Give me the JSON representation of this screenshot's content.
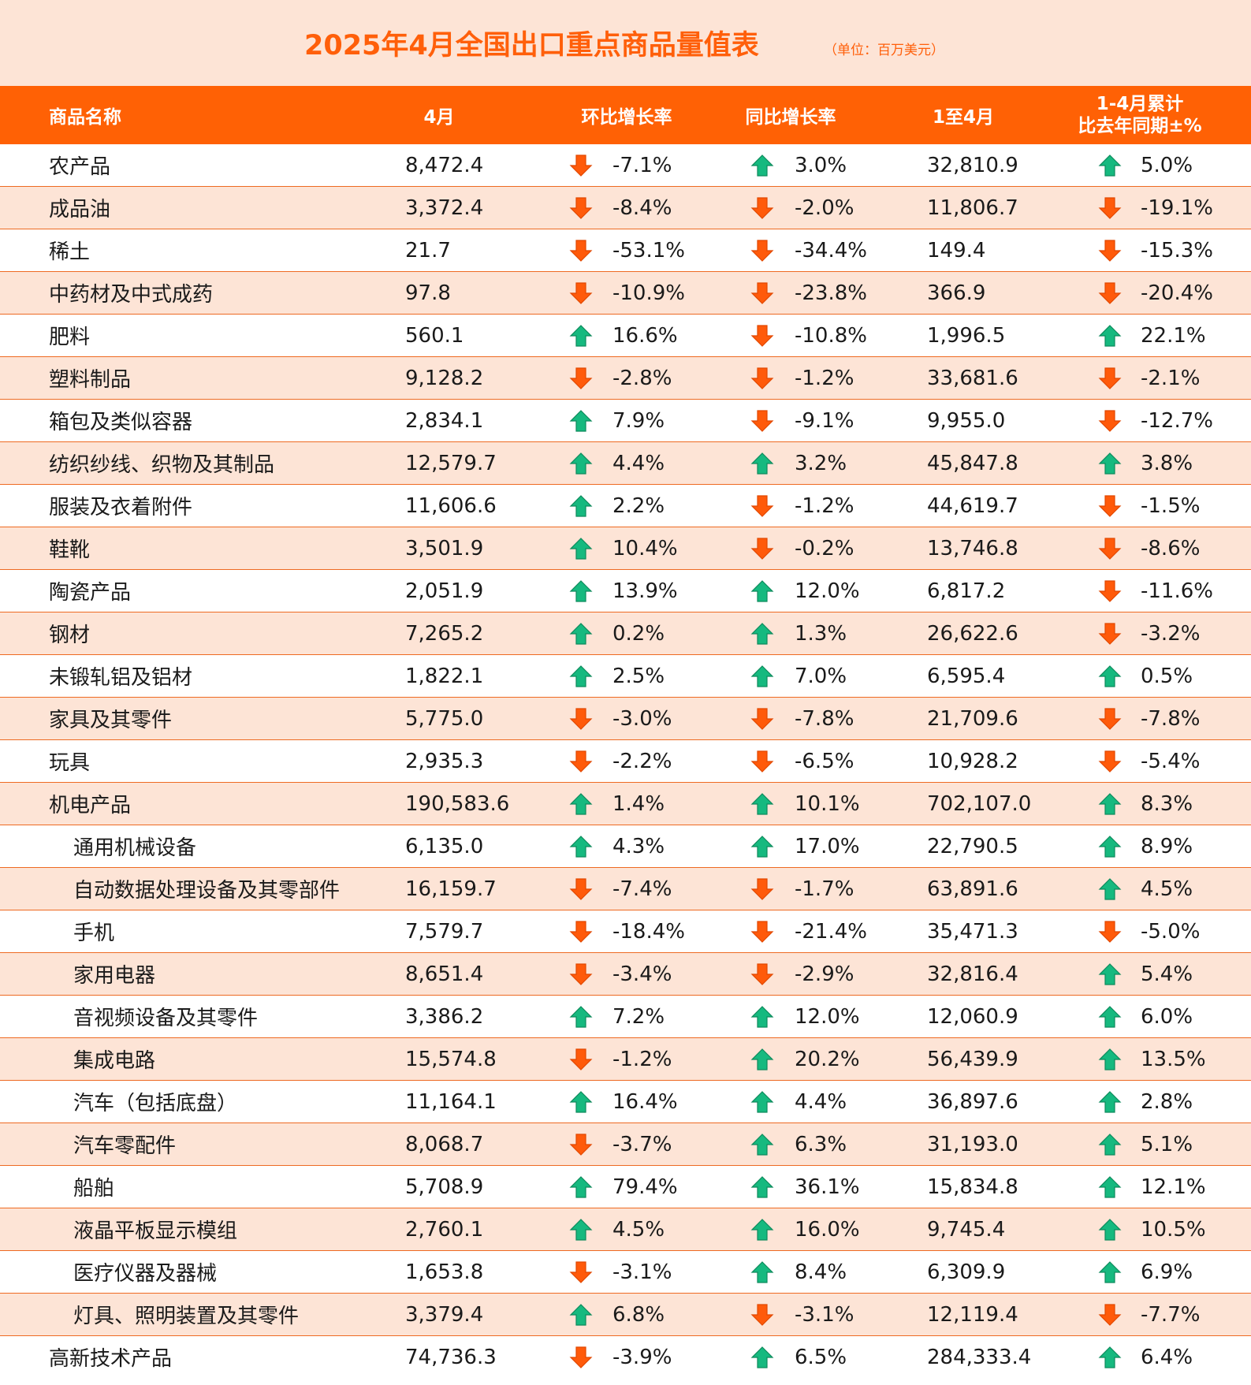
{
  "title": "2025年4月全国出口重点商品量值表",
  "unit": "（单位：百万美元）",
  "colors": {
    "accent": "#FF6105",
    "background": "#FDE4D6",
    "up": "#16B97F",
    "down": "#FF5A0A"
  },
  "headers": {
    "name": "商品名称",
    "april": "4月",
    "mom": "环比增长率",
    "yoy": "同比增长率",
    "cum": "1至4月",
    "cum_change_line1": "1-4月累计",
    "cum_change_line2": "比去年同期±%"
  },
  "rows": [
    {
      "name": "农产品",
      "sub": false,
      "april": "8,472.4",
      "mom": "-7.1%",
      "mom_dir": "down",
      "yoy": "3.0%",
      "yoy_dir": "up",
      "cum": "32,810.9",
      "cum_chg": "5.0%",
      "cum_dir": "up"
    },
    {
      "name": "成品油",
      "sub": false,
      "april": "3,372.4",
      "mom": "-8.4%",
      "mom_dir": "down",
      "yoy": "-2.0%",
      "yoy_dir": "down",
      "cum": "11,806.7",
      "cum_chg": "-19.1%",
      "cum_dir": "down"
    },
    {
      "name": "稀土",
      "sub": false,
      "april": "21.7",
      "mom": "-53.1%",
      "mom_dir": "down",
      "yoy": "-34.4%",
      "yoy_dir": "down",
      "cum": "149.4",
      "cum_chg": "-15.3%",
      "cum_dir": "down"
    },
    {
      "name": "中药材及中式成药",
      "sub": false,
      "april": "97.8",
      "mom": "-10.9%",
      "mom_dir": "down",
      "yoy": "-23.8%",
      "yoy_dir": "down",
      "cum": "366.9",
      "cum_chg": "-20.4%",
      "cum_dir": "down"
    },
    {
      "name": "肥料",
      "sub": false,
      "april": "560.1",
      "mom": "16.6%",
      "mom_dir": "up",
      "yoy": "-10.8%",
      "yoy_dir": "down",
      "cum": "1,996.5",
      "cum_chg": "22.1%",
      "cum_dir": "up"
    },
    {
      "name": "塑料制品",
      "sub": false,
      "april": "9,128.2",
      "mom": "-2.8%",
      "mom_dir": "down",
      "yoy": "-1.2%",
      "yoy_dir": "down",
      "cum": "33,681.6",
      "cum_chg": "-2.1%",
      "cum_dir": "down"
    },
    {
      "name": "箱包及类似容器",
      "sub": false,
      "april": "2,834.1",
      "mom": "7.9%",
      "mom_dir": "up",
      "yoy": "-9.1%",
      "yoy_dir": "down",
      "cum": "9,955.0",
      "cum_chg": "-12.7%",
      "cum_dir": "down"
    },
    {
      "name": "纺织纱线、织物及其制品",
      "sub": false,
      "april": "12,579.7",
      "mom": "4.4%",
      "mom_dir": "up",
      "yoy": "3.2%",
      "yoy_dir": "up",
      "cum": "45,847.8",
      "cum_chg": "3.8%",
      "cum_dir": "up"
    },
    {
      "name": "服装及衣着附件",
      "sub": false,
      "april": "11,606.6",
      "mom": "2.2%",
      "mom_dir": "up",
      "yoy": "-1.2%",
      "yoy_dir": "down",
      "cum": "44,619.7",
      "cum_chg": "-1.5%",
      "cum_dir": "down"
    },
    {
      "name": "鞋靴",
      "sub": false,
      "april": "3,501.9",
      "mom": "10.4%",
      "mom_dir": "up",
      "yoy": "-0.2%",
      "yoy_dir": "down",
      "cum": "13,746.8",
      "cum_chg": "-8.6%",
      "cum_dir": "down"
    },
    {
      "name": "陶瓷产品",
      "sub": false,
      "april": "2,051.9",
      "mom": "13.9%",
      "mom_dir": "up",
      "yoy": "12.0%",
      "yoy_dir": "up",
      "cum": "6,817.2",
      "cum_chg": "-11.6%",
      "cum_dir": "down"
    },
    {
      "name": "钢材",
      "sub": false,
      "april": "7,265.2",
      "mom": "0.2%",
      "mom_dir": "up",
      "yoy": "1.3%",
      "yoy_dir": "up",
      "cum": "26,622.6",
      "cum_chg": "-3.2%",
      "cum_dir": "down"
    },
    {
      "name": "未锻轧铝及铝材",
      "sub": false,
      "april": "1,822.1",
      "mom": "2.5%",
      "mom_dir": "up",
      "yoy": "7.0%",
      "yoy_dir": "up",
      "cum": "6,595.4",
      "cum_chg": "0.5%",
      "cum_dir": "up"
    },
    {
      "name": "家具及其零件",
      "sub": false,
      "april": "5,775.0",
      "mom": "-3.0%",
      "mom_dir": "down",
      "yoy": "-7.8%",
      "yoy_dir": "down",
      "cum": "21,709.6",
      "cum_chg": "-7.8%",
      "cum_dir": "down"
    },
    {
      "name": "玩具",
      "sub": false,
      "april": "2,935.3",
      "mom": "-2.2%",
      "mom_dir": "down",
      "yoy": "-6.5%",
      "yoy_dir": "down",
      "cum": "10,928.2",
      "cum_chg": "-5.4%",
      "cum_dir": "down"
    },
    {
      "name": "机电产品",
      "sub": false,
      "april": "190,583.6",
      "mom": "1.4%",
      "mom_dir": "up",
      "yoy": "10.1%",
      "yoy_dir": "up",
      "cum": "702,107.0",
      "cum_chg": "8.3%",
      "cum_dir": "up"
    },
    {
      "name": "通用机械设备",
      "sub": true,
      "april": "6,135.0",
      "mom": "4.3%",
      "mom_dir": "up",
      "yoy": "17.0%",
      "yoy_dir": "up",
      "cum": "22,790.5",
      "cum_chg": "8.9%",
      "cum_dir": "up"
    },
    {
      "name": "自动数据处理设备及其零部件",
      "sub": true,
      "april": "16,159.7",
      "mom": "-7.4%",
      "mom_dir": "down",
      "yoy": "-1.7%",
      "yoy_dir": "down",
      "cum": "63,891.6",
      "cum_chg": "4.5%",
      "cum_dir": "up"
    },
    {
      "name": "手机",
      "sub": true,
      "april": "7,579.7",
      "mom": "-18.4%",
      "mom_dir": "down",
      "yoy": "-21.4%",
      "yoy_dir": "down",
      "cum": "35,471.3",
      "cum_chg": "-5.0%",
      "cum_dir": "down"
    },
    {
      "name": "家用电器",
      "sub": true,
      "april": "8,651.4",
      "mom": "-3.4%",
      "mom_dir": "down",
      "yoy": "-2.9%",
      "yoy_dir": "down",
      "cum": "32,816.4",
      "cum_chg": "5.4%",
      "cum_dir": "up"
    },
    {
      "name": "音视频设备及其零件",
      "sub": true,
      "april": "3,386.2",
      "mom": "7.2%",
      "mom_dir": "up",
      "yoy": "12.0%",
      "yoy_dir": "up",
      "cum": "12,060.9",
      "cum_chg": "6.0%",
      "cum_dir": "up"
    },
    {
      "name": "集成电路",
      "sub": true,
      "april": "15,574.8",
      "mom": "-1.2%",
      "mom_dir": "down",
      "yoy": "20.2%",
      "yoy_dir": "up",
      "cum": "56,439.9",
      "cum_chg": "13.5%",
      "cum_dir": "up"
    },
    {
      "name": "汽车（包括底盘）",
      "sub": true,
      "april": "11,164.1",
      "mom": "16.4%",
      "mom_dir": "up",
      "yoy": "4.4%",
      "yoy_dir": "up",
      "cum": "36,897.6",
      "cum_chg": "2.8%",
      "cum_dir": "up"
    },
    {
      "name": "汽车零配件",
      "sub": true,
      "april": "8,068.7",
      "mom": "-3.7%",
      "mom_dir": "down",
      "yoy": "6.3%",
      "yoy_dir": "up",
      "cum": "31,193.0",
      "cum_chg": "5.1%",
      "cum_dir": "up"
    },
    {
      "name": "船舶",
      "sub": true,
      "april": "5,708.9",
      "mom": "79.4%",
      "mom_dir": "up",
      "yoy": "36.1%",
      "yoy_dir": "up",
      "cum": "15,834.8",
      "cum_chg": "12.1%",
      "cum_dir": "up"
    },
    {
      "name": "液晶平板显示模组",
      "sub": true,
      "april": "2,760.1",
      "mom": "4.5%",
      "mom_dir": "up",
      "yoy": "16.0%",
      "yoy_dir": "up",
      "cum": "9,745.4",
      "cum_chg": "10.5%",
      "cum_dir": "up"
    },
    {
      "name": "医疗仪器及器械",
      "sub": true,
      "april": "1,653.8",
      "mom": "-3.1%",
      "mom_dir": "down",
      "yoy": "8.4%",
      "yoy_dir": "up",
      "cum": "6,309.9",
      "cum_chg": "6.9%",
      "cum_dir": "up"
    },
    {
      "name": "灯具、照明装置及其零件",
      "sub": true,
      "april": "3,379.4",
      "mom": "6.8%",
      "mom_dir": "up",
      "yoy": "-3.1%",
      "yoy_dir": "down",
      "cum": "12,119.4",
      "cum_chg": "-7.7%",
      "cum_dir": "down"
    },
    {
      "name": "高新技术产品",
      "sub": false,
      "april": "74,736.3",
      "mom": "-3.9%",
      "mom_dir": "down",
      "yoy": "6.5%",
      "yoy_dir": "up",
      "cum": "284,333.4",
      "cum_chg": "6.4%",
      "cum_dir": "up"
    }
  ]
}
